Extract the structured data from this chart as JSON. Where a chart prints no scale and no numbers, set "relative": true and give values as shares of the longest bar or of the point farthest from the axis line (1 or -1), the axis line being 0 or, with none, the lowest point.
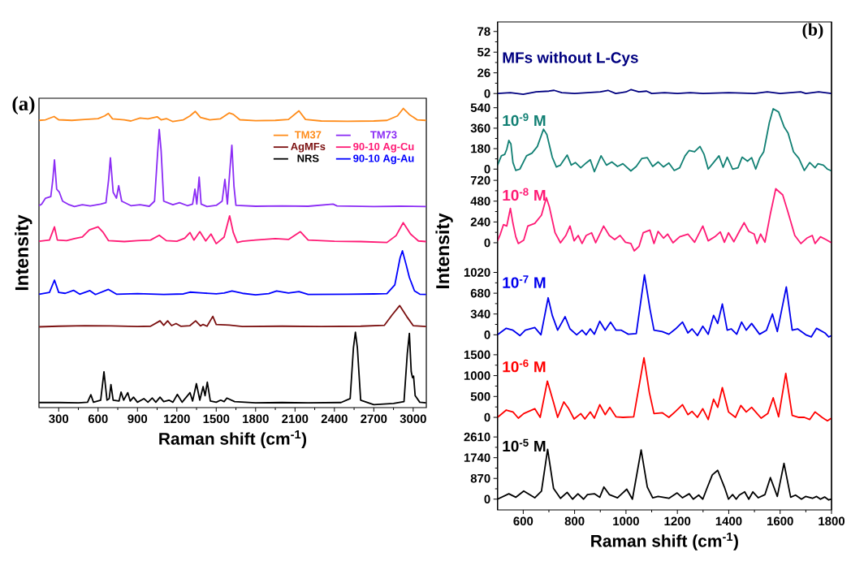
{
  "chart_data": [
    {
      "type": "line",
      "title": "(a)",
      "xlabel": "Raman shift (cm$^{-1}$)",
      "ylabel": "Intensity",
      "relative": true,
      "legend": "top right",
      "xlim": [
        150,
        3100
      ],
      "xticks": [
        300,
        600,
        900,
        1200,
        1500,
        1800,
        2100,
        2400,
        2700,
        3000
      ],
      "series": [
        {
          "name": "TM37",
          "color": "#ff8c1a",
          "x": [
            151,
            200,
            265,
            300,
            400,
            500,
            600,
            650,
            678,
            710,
            800,
            850,
            920,
            980,
            1050,
            1080,
            1120,
            1170,
            1250,
            1300,
            1340,
            1380,
            1450,
            1530,
            1600,
            1630,
            1680,
            1800,
            1950,
            2050,
            2130,
            2180,
            2300,
            2500,
            2700,
            2800,
            2880,
            2925,
            2970,
            3030,
            3098
          ],
          "values": [
            0.96,
            0.962,
            0.973,
            0.962,
            0.96,
            0.963,
            0.966,
            0.975,
            0.983,
            0.965,
            0.962,
            0.958,
            0.968,
            0.965,
            0.972,
            0.962,
            0.966,
            0.956,
            0.962,
            0.975,
            0.99,
            0.97,
            0.962,
            0.965,
            0.985,
            0.98,
            0.962,
            0.959,
            0.96,
            0.963,
            0.992,
            0.963,
            0.958,
            0.957,
            0.958,
            0.96,
            0.975,
            1.0,
            0.98,
            0.962,
            0.96
          ]
        },
        {
          "name": "TM73",
          "color": "#8b2cf5",
          "x": [
            151,
            170,
            200,
            240,
            255,
            268,
            285,
            305,
            330,
            380,
            420,
            480,
            540,
            620,
            660,
            680,
            694,
            715,
            740,
            757,
            780,
            850,
            920,
            990,
            1030,
            1055,
            1066,
            1080,
            1100,
            1130,
            1170,
            1220,
            1280,
            1320,
            1338,
            1352,
            1370,
            1385,
            1430,
            1500,
            1545,
            1566,
            1585,
            1605,
            1619,
            1635,
            1650,
            1800,
            2000,
            2200,
            2390,
            2420,
            2700,
            2900,
            3098
          ],
          "values": [
            0.675,
            0.68,
            0.7,
            0.705,
            0.76,
            0.828,
            0.73,
            0.72,
            0.69,
            0.678,
            0.672,
            0.678,
            0.674,
            0.68,
            0.685,
            0.76,
            0.835,
            0.72,
            0.7,
            0.742,
            0.69,
            0.675,
            0.678,
            0.673,
            0.69,
            0.86,
            0.93,
            0.86,
            0.69,
            0.685,
            0.678,
            0.685,
            0.675,
            0.68,
            0.73,
            0.68,
            0.77,
            0.68,
            0.672,
            0.676,
            0.69,
            0.763,
            0.68,
            0.8,
            0.877,
            0.74,
            0.676,
            0.673,
            0.674,
            0.673,
            0.68,
            0.674,
            0.672,
            0.673,
            0.672
          ]
        },
        {
          "name": "90-10 Ag-Cu",
          "color": "#ff1a75",
          "x": [
            151,
            230,
            268,
            290,
            360,
            420,
            480,
            534,
            600,
            640,
            680,
            800,
            900,
            1000,
            1066,
            1120,
            1200,
            1260,
            1300,
            1330,
            1375,
            1420,
            1460,
            1500,
            1560,
            1602,
            1630,
            1660,
            1700,
            1800,
            1950,
            2050,
            2141,
            2200,
            2400,
            2600,
            2800,
            2870,
            2924,
            2980,
            3040,
            3098
          ],
          "values": [
            0.556,
            0.56,
            0.604,
            0.56,
            0.558,
            0.565,
            0.57,
            0.594,
            0.604,
            0.585,
            0.558,
            0.555,
            0.558,
            0.56,
            0.576,
            0.558,
            0.556,
            0.566,
            0.585,
            0.56,
            0.588,
            0.557,
            0.58,
            0.548,
            0.57,
            0.641,
            0.585,
            0.552,
            0.556,
            0.56,
            0.565,
            0.562,
            0.588,
            0.56,
            0.556,
            0.555,
            0.552,
            0.575,
            0.618,
            0.58,
            0.557,
            0.555
          ]
        },
        {
          "name": "90-10 Ag-Au",
          "color": "#0000ff",
          "x": [
            151,
            230,
            268,
            300,
            350,
            413,
            460,
            538,
            580,
            679,
            740,
            900,
            1100,
            1250,
            1300,
            1400,
            1500,
            1560,
            1620,
            1700,
            1800,
            1900,
            1960,
            2050,
            2130,
            2200,
            2500,
            2700,
            2800,
            2860,
            2900,
            2918,
            2945,
            2971,
            3010,
            3050,
            3098
          ],
          "values": [
            0.379,
            0.385,
            0.426,
            0.385,
            0.382,
            0.392,
            0.379,
            0.391,
            0.378,
            0.395,
            0.379,
            0.381,
            0.378,
            0.38,
            0.386,
            0.383,
            0.38,
            0.383,
            0.39,
            0.382,
            0.377,
            0.381,
            0.39,
            0.383,
            0.388,
            0.378,
            0.379,
            0.38,
            0.381,
            0.41,
            0.5,
            0.524,
            0.48,
            0.435,
            0.39,
            0.379,
            0.378
          ]
        },
        {
          "name": "AgMFs",
          "color": "#7b1010",
          "x": [
            151,
            300,
            500,
            700,
            900,
            1000,
            1072,
            1100,
            1130,
            1160,
            1194,
            1230,
            1300,
            1343,
            1380,
            1400,
            1430,
            1474,
            1500,
            1600,
            1700,
            2000,
            2300,
            2600,
            2780,
            2840,
            2897,
            2950,
            3000,
            3098
          ],
          "values": [
            0.27,
            0.272,
            0.274,
            0.273,
            0.271,
            0.272,
            0.29,
            0.275,
            0.29,
            0.274,
            0.281,
            0.272,
            0.274,
            0.29,
            0.273,
            0.278,
            0.272,
            0.305,
            0.278,
            0.276,
            0.271,
            0.272,
            0.271,
            0.272,
            0.275,
            0.31,
            0.341,
            0.305,
            0.274,
            0.271
          ]
        },
        {
          "name": "NRS",
          "color": "#000000",
          "x": [
            151,
            300,
            450,
            520,
            545,
            565,
            620,
            645,
            668,
            685,
            698,
            715,
            760,
            775,
            795,
            826,
            845,
            870,
            900,
            949,
            980,
            1013,
            1040,
            1072,
            1100,
            1140,
            1170,
            1204,
            1240,
            1300,
            1320,
            1349,
            1375,
            1400,
            1415,
            1432,
            1455,
            1500,
            1534,
            1560,
            1581,
            1640,
            1800,
            2000,
            2200,
            2450,
            2520,
            2545,
            2560,
            2575,
            2600,
            2700,
            2850,
            2930,
            2955,
            2971,
            2985,
            2995,
            3003,
            3015,
            3050,
            3098
          ],
          "values": [
            0.017,
            0.017,
            0.016,
            0.018,
            0.043,
            0.018,
            0.025,
            0.12,
            0.025,
            0.03,
            0.077,
            0.025,
            0.022,
            0.052,
            0.025,
            0.05,
            0.022,
            0.035,
            0.018,
            0.03,
            0.018,
            0.032,
            0.018,
            0.035,
            0.02,
            0.025,
            0.018,
            0.044,
            0.018,
            0.05,
            0.022,
            0.08,
            0.025,
            0.07,
            0.04,
            0.085,
            0.022,
            0.018,
            0.025,
            0.02,
            0.032,
            0.02,
            0.016,
            0.017,
            0.016,
            0.017,
            0.03,
            0.2,
            0.252,
            0.2,
            0.025,
            0.01,
            0.014,
            0.02,
            0.18,
            0.248,
            0.12,
            0.1,
            0.105,
            0.04,
            0.018,
            0.016
          ]
        }
      ]
    },
    {
      "type": "line",
      "title": "(b)",
      "tick_labels": "y",
      "xlim": [
        500,
        1800
      ],
      "ylim": [
        -9,
        90
      ],
      "yticks": [
        0,
        26,
        52,
        78
      ],
      "x": [
        500,
        550,
        600,
        650,
        700,
        720,
        750,
        800,
        850,
        900,
        930,
        960,
        1000,
        1020,
        1050,
        1080,
        1100,
        1150,
        1200,
        1250,
        1300,
        1400,
        1500,
        1550,
        1600,
        1680,
        1700,
        1750,
        1800
      ],
      "series": [
        {
          "name": "MFs without L-Cys",
          "color": "#000080",
          "values": [
            0,
            1,
            -1,
            2,
            3,
            4,
            1,
            0,
            1,
            2,
            4,
            0,
            2,
            5,
            2,
            3,
            0,
            1,
            0,
            1,
            0,
            1,
            0,
            2,
            0,
            2,
            0,
            2,
            0
          ]
        }
      ]
    },
    {
      "type": "line",
      "tick_labels": "y",
      "xlim": [
        500,
        1800
      ],
      "ylim": [
        -41,
        602
      ],
      "yticks": [
        0,
        180,
        360,
        540
      ],
      "x": [
        500,
        515,
        528,
        536,
        544,
        552,
        560,
        571,
        587,
        613,
        634,
        655,
        679,
        692,
        713,
        729,
        745,
        771,
        787,
        803,
        824,
        845,
        861,
        877,
        903,
        924,
        945,
        967,
        988,
        1019,
        1040,
        1062,
        1083,
        1104,
        1125,
        1146,
        1167,
        1188,
        1209,
        1230,
        1246,
        1267,
        1288,
        1304,
        1320,
        1341,
        1362,
        1378,
        1394,
        1415,
        1436,
        1452,
        1473,
        1489,
        1505,
        1520,
        1536,
        1558,
        1573,
        1594,
        1615,
        1631,
        1652,
        1673,
        1694,
        1715,
        1736,
        1747,
        1768,
        1784,
        1800
      ],
      "series": [
        {
          "name": "10$^{-9}$ M",
          "color": "#128074",
          "values": [
            35,
            117,
            129,
            175,
            252,
            222,
            58,
            -12,
            0,
            117,
            140,
            199,
            351,
            304,
            105,
            19,
            35,
            124,
            35,
            58,
            12,
            54,
            82,
            -23,
            117,
            35,
            63,
            23,
            47,
            -16,
            23,
            94,
            101,
            23,
            63,
            19,
            54,
            -12,
            12,
            117,
            164,
            152,
            199,
            129,
            0,
            58,
            117,
            16,
            105,
            0,
            12,
            105,
            70,
            101,
            0,
            94,
            152,
            409,
            531,
            503,
            374,
            316,
            152,
            94,
            -12,
            58,
            12,
            47,
            35,
            0,
            -16
          ]
        }
      ]
    },
    {
      "type": "line",
      "tick_labels": "y",
      "ylabel": "Intensity",
      "xlim": [
        500,
        1800
      ],
      "ylim": [
        -197,
        796
      ],
      "yticks": [
        0,
        240,
        480,
        720
      ],
      "x": [
        500,
        511,
        523,
        536,
        550,
        560,
        571,
        581,
        602,
        618,
        645,
        671,
        690,
        702,
        724,
        745,
        766,
        782,
        798,
        814,
        829,
        845,
        866,
        882,
        913,
        935,
        956,
        977,
        998,
        1019,
        1032,
        1051,
        1067,
        1093,
        1109,
        1125,
        1146,
        1162,
        1183,
        1209,
        1241,
        1267,
        1299,
        1320,
        1346,
        1367,
        1383,
        1399,
        1420,
        1441,
        1460,
        1478,
        1499,
        1510,
        1524,
        1541,
        1562,
        1583,
        1610,
        1631,
        1657,
        1681,
        1704,
        1725,
        1736,
        1757,
        1778,
        1800
      ],
      "series": [
        {
          "name": "10$^{-8}$ M",
          "color": "#ff1a75",
          "values": [
            22,
            100,
            209,
            193,
            396,
            224,
            69,
            -9,
            31,
            193,
            224,
            318,
            520,
            411,
            115,
            0,
            84,
            193,
            22,
            84,
            -9,
            84,
            115,
            0,
            193,
            84,
            37,
            84,
            6,
            -9,
            -94,
            -41,
            115,
            146,
            -9,
            131,
            53,
            100,
            0,
            69,
            100,
            6,
            193,
            22,
            69,
            125,
            6,
            115,
            12,
            131,
            231,
            131,
            100,
            -9,
            100,
            6,
            334,
            623,
            552,
            349,
            84,
            -9,
            53,
            84,
            -9,
            69,
            37,
            0
          ]
        }
      ]
    },
    {
      "type": "line",
      "tick_labels": "y",
      "xlim": [
        500,
        1800
      ],
      "ylim": [
        -155,
        1226
      ],
      "yticks": [
        0,
        340,
        680,
        1020
      ],
      "x": [
        500,
        534,
        560,
        587,
        608,
        645,
        669,
        697,
        713,
        734,
        763,
        782,
        808,
        829,
        845,
        861,
        877,
        898,
        919,
        940,
        961,
        982,
        1009,
        1040,
        1072,
        1093,
        1109,
        1141,
        1167,
        1193,
        1220,
        1241,
        1257,
        1278,
        1299,
        1320,
        1341,
        1357,
        1375,
        1394,
        1410,
        1431,
        1450,
        1468,
        1489,
        1520,
        1547,
        1570,
        1589,
        1624,
        1647,
        1668,
        1700,
        1721,
        1742,
        1774,
        1789,
        1800
      ],
      "series": [
        {
          "name": "10$^{-7}$ M",
          "color": "#0000ee",
          "values": [
            0,
            106,
            75,
            -13,
            75,
            119,
            0,
            605,
            318,
            75,
            296,
            97,
            0,
            75,
            0,
            97,
            9,
            221,
            75,
            208,
            75,
            75,
            9,
            18,
            980,
            428,
            75,
            53,
            9,
            97,
            208,
            31,
            97,
            -13,
            141,
            9,
            318,
            185,
            503,
            75,
            97,
            9,
            208,
            75,
            185,
            9,
            75,
            340,
            53,
            782,
            75,
            97,
            0,
            -35,
            106,
            31,
            -35,
            -13
          ]
        }
      ]
    },
    {
      "type": "line",
      "tick_labels": "y",
      "xlim": [
        500,
        1800
      ],
      "ylim": [
        -233,
        1751
      ],
      "yticks": [
        0,
        500,
        1000,
        1500
      ],
      "x": [
        500,
        534,
        560,
        581,
        602,
        645,
        666,
        694,
        719,
        734,
        758,
        777,
        798,
        824,
        840,
        861,
        877,
        898,
        919,
        937,
        961,
        988,
        1030,
        1070,
        1091,
        1109,
        1141,
        1167,
        1193,
        1220,
        1241,
        1257,
        1278,
        1299,
        1320,
        1341,
        1357,
        1375,
        1399,
        1426,
        1447,
        1468,
        1489,
        1526,
        1552,
        1573,
        1594,
        1622,
        1647,
        1673,
        1694,
        1715,
        1736,
        1763,
        1784,
        1800
      ],
      "series": [
        {
          "name": "10$^{-6}$ M",
          "color": "#ff0000",
          "values": [
            0,
            175,
            130,
            -19,
            91,
            208,
            0,
            870,
            338,
            0,
            370,
            208,
            -39,
            91,
            -39,
            130,
            -19,
            305,
            65,
            240,
            13,
            0,
            13,
            1429,
            597,
            91,
            110,
            0,
            143,
            305,
            65,
            143,
            0,
            208,
            -52,
            435,
            240,
            714,
            130,
            0,
            286,
            130,
            240,
            -19,
            91,
            468,
            13,
            1052,
            45,
            0,
            0,
            -52,
            130,
            0,
            -84,
            -19
          ]
        }
      ]
    },
    {
      "type": "line",
      "xlabel": "Raman shift (cm$^{-1}$)",
      "xlim": [
        500,
        1800
      ],
      "xticks": [
        600,
        800,
        1000,
        1200,
        1400,
        1600,
        1800
      ],
      "ylim": [
        -452,
        3024
      ],
      "yticks": [
        0,
        870,
        1740,
        2610
      ],
      "x": [
        500,
        544,
        571,
        602,
        645,
        671,
        695,
        718,
        745,
        771,
        792,
        813,
        835,
        850,
        877,
        898,
        914,
        935,
        967,
        1003,
        1025,
        1059,
        1083,
        1104,
        1125,
        1167,
        1199,
        1220,
        1246,
        1262,
        1283,
        1299,
        1315,
        1336,
        1357,
        1383,
        1399,
        1415,
        1429,
        1441,
        1462,
        1478,
        1494,
        1515,
        1541,
        1562,
        1589,
        1615,
        1641,
        1660,
        1683,
        1699,
        1726,
        1742,
        1757,
        1773,
        1789,
        1800
      ],
      "series": [
        {
          "name": "10$^{-5}$ M",
          "color": "#000000",
          "values": [
            0,
            226,
            79,
            339,
            57,
            339,
            2090,
            452,
            34,
            283,
            0,
            226,
            0,
            192,
            226,
            79,
            509,
            192,
            57,
            418,
            0,
            2068,
            509,
            57,
            113,
            34,
            260,
            57,
            226,
            0,
            170,
            0,
            452,
            1017,
            1209,
            509,
            0,
            192,
            0,
            170,
            305,
            0,
            305,
            57,
            192,
            904,
            113,
            1503,
            79,
            170,
            0,
            113,
            34,
            113,
            0,
            90,
            -34,
            0
          ]
        }
      ]
    }
  ]
}
